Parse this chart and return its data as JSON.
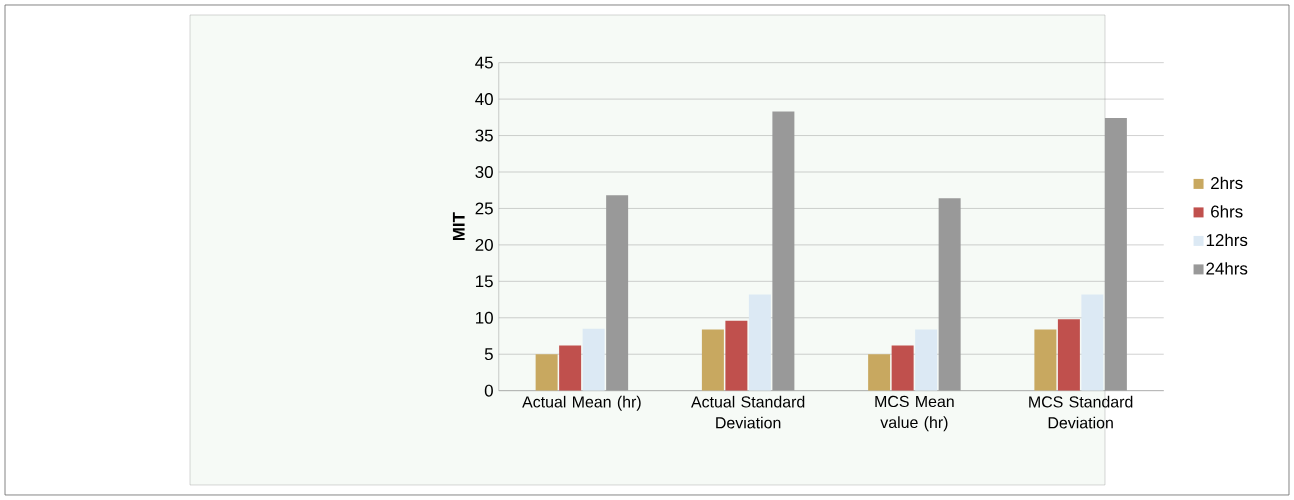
{
  "chart_data": {
    "type": "bar",
    "ylabel": "MIT",
    "categories": [
      "Actual Mean (hr)",
      "Actual Standard Deviation",
      "MCS Mean value (hr)",
      "MCS Standard Deviation"
    ],
    "series": [
      {
        "name": "2hrs",
        "color": "#c8a860",
        "values": [
          5.0,
          8.4,
          5.0,
          8.4
        ]
      },
      {
        "name": "6hrs",
        "color": "#c0504d",
        "values": [
          6.2,
          9.6,
          6.2,
          9.8
        ]
      },
      {
        "name": "12hrs",
        "color": "#dce9f4",
        "values": [
          8.5,
          13.2,
          8.4,
          13.2
        ]
      },
      {
        "name": "24hrs",
        "color": "#999999",
        "values": [
          26.8,
          38.3,
          26.4,
          37.4
        ]
      }
    ],
    "ylim": [
      0,
      45
    ],
    "yticks": [
      0,
      5,
      10,
      15,
      20,
      25,
      30,
      35,
      40,
      45
    ],
    "grid": "y",
    "legend": "right"
  }
}
